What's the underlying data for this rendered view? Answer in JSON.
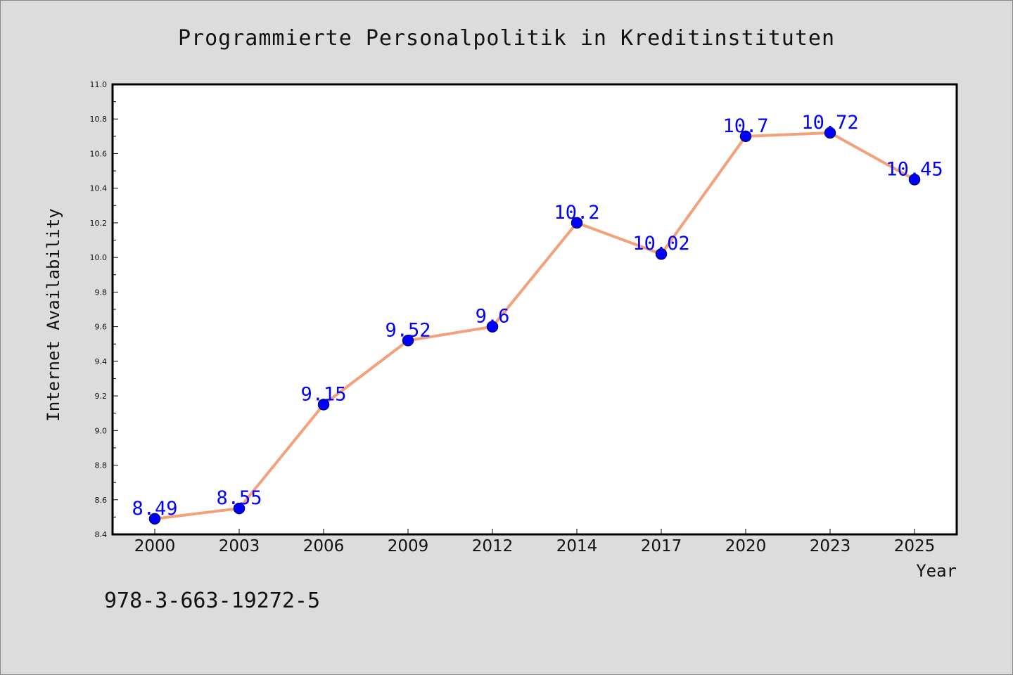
{
  "chart_data": {
    "type": "line",
    "title": "Programmierte Personalpolitik in Kreditinstituten",
    "xlabel": "Year",
    "ylabel": "Internet Availability",
    "categories": [
      "2000",
      "2003",
      "2006",
      "2009",
      "2012",
      "2014",
      "2017",
      "2020",
      "2023",
      "2025"
    ],
    "series": [
      {
        "values": [
          8.49,
          8.55,
          9.15,
          9.52,
          9.6,
          10.2,
          10.02,
          10.7,
          10.72,
          10.45
        ],
        "labels": [
          "8.49",
          "8.55",
          "9.15",
          "9.52",
          "9.6",
          "10.2",
          "10.02",
          "10.7",
          "10.72",
          "10.45"
        ]
      }
    ],
    "ylim": [
      8.4,
      11.0
    ],
    "yticks": [
      "8.4",
      "8.6",
      "8.8",
      "9.0",
      "9.2",
      "9.4",
      "9.6",
      "9.8",
      "10.0",
      "10.2",
      "10.4",
      "10.6",
      "10.8",
      "11.0"
    ],
    "grid": false,
    "colors": {
      "line": "#f4a07a",
      "marker": "#0000ff",
      "marker_edge": "#000080",
      "data_label": "#0000ff",
      "plot_bg": "#ffffff",
      "figure_bg": "#dcdcdc"
    }
  },
  "footer": {
    "isbn": "978-3-663-19272-5"
  }
}
